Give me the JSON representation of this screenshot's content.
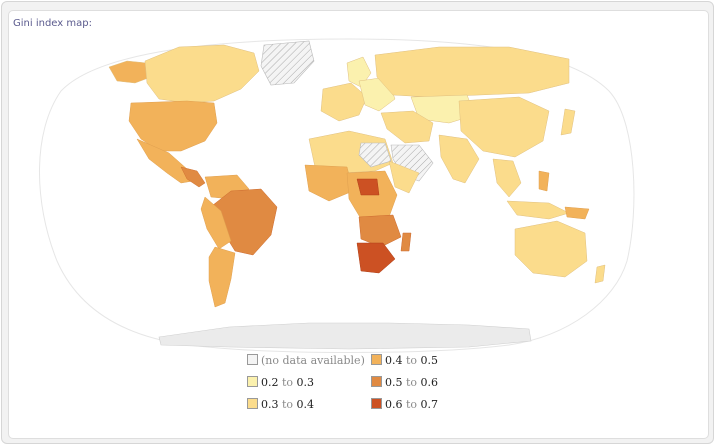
{
  "title": "Gini index map:",
  "colors": {
    "nodata": "#ebebeb",
    "r2": "#fbf1ae",
    "r3": "#fbdc8c",
    "r4": "#f2b25a",
    "r5": "#e08a42",
    "r6": "#cc5123",
    "ocean_outline": "#e6e6e6"
  },
  "legend": {
    "nodata": "(no data available)",
    "to": "to",
    "ranges": [
      {
        "from": "0.2",
        "to": "0.3",
        "color_key": "r2"
      },
      {
        "from": "0.3",
        "to": "0.4",
        "color_key": "r3"
      },
      {
        "from": "0.4",
        "to": "0.5",
        "color_key": "r4"
      },
      {
        "from": "0.5",
        "to": "0.6",
        "color_key": "r5"
      },
      {
        "from": "0.6",
        "to": "0.7",
        "color_key": "r6"
      }
    ]
  }
}
